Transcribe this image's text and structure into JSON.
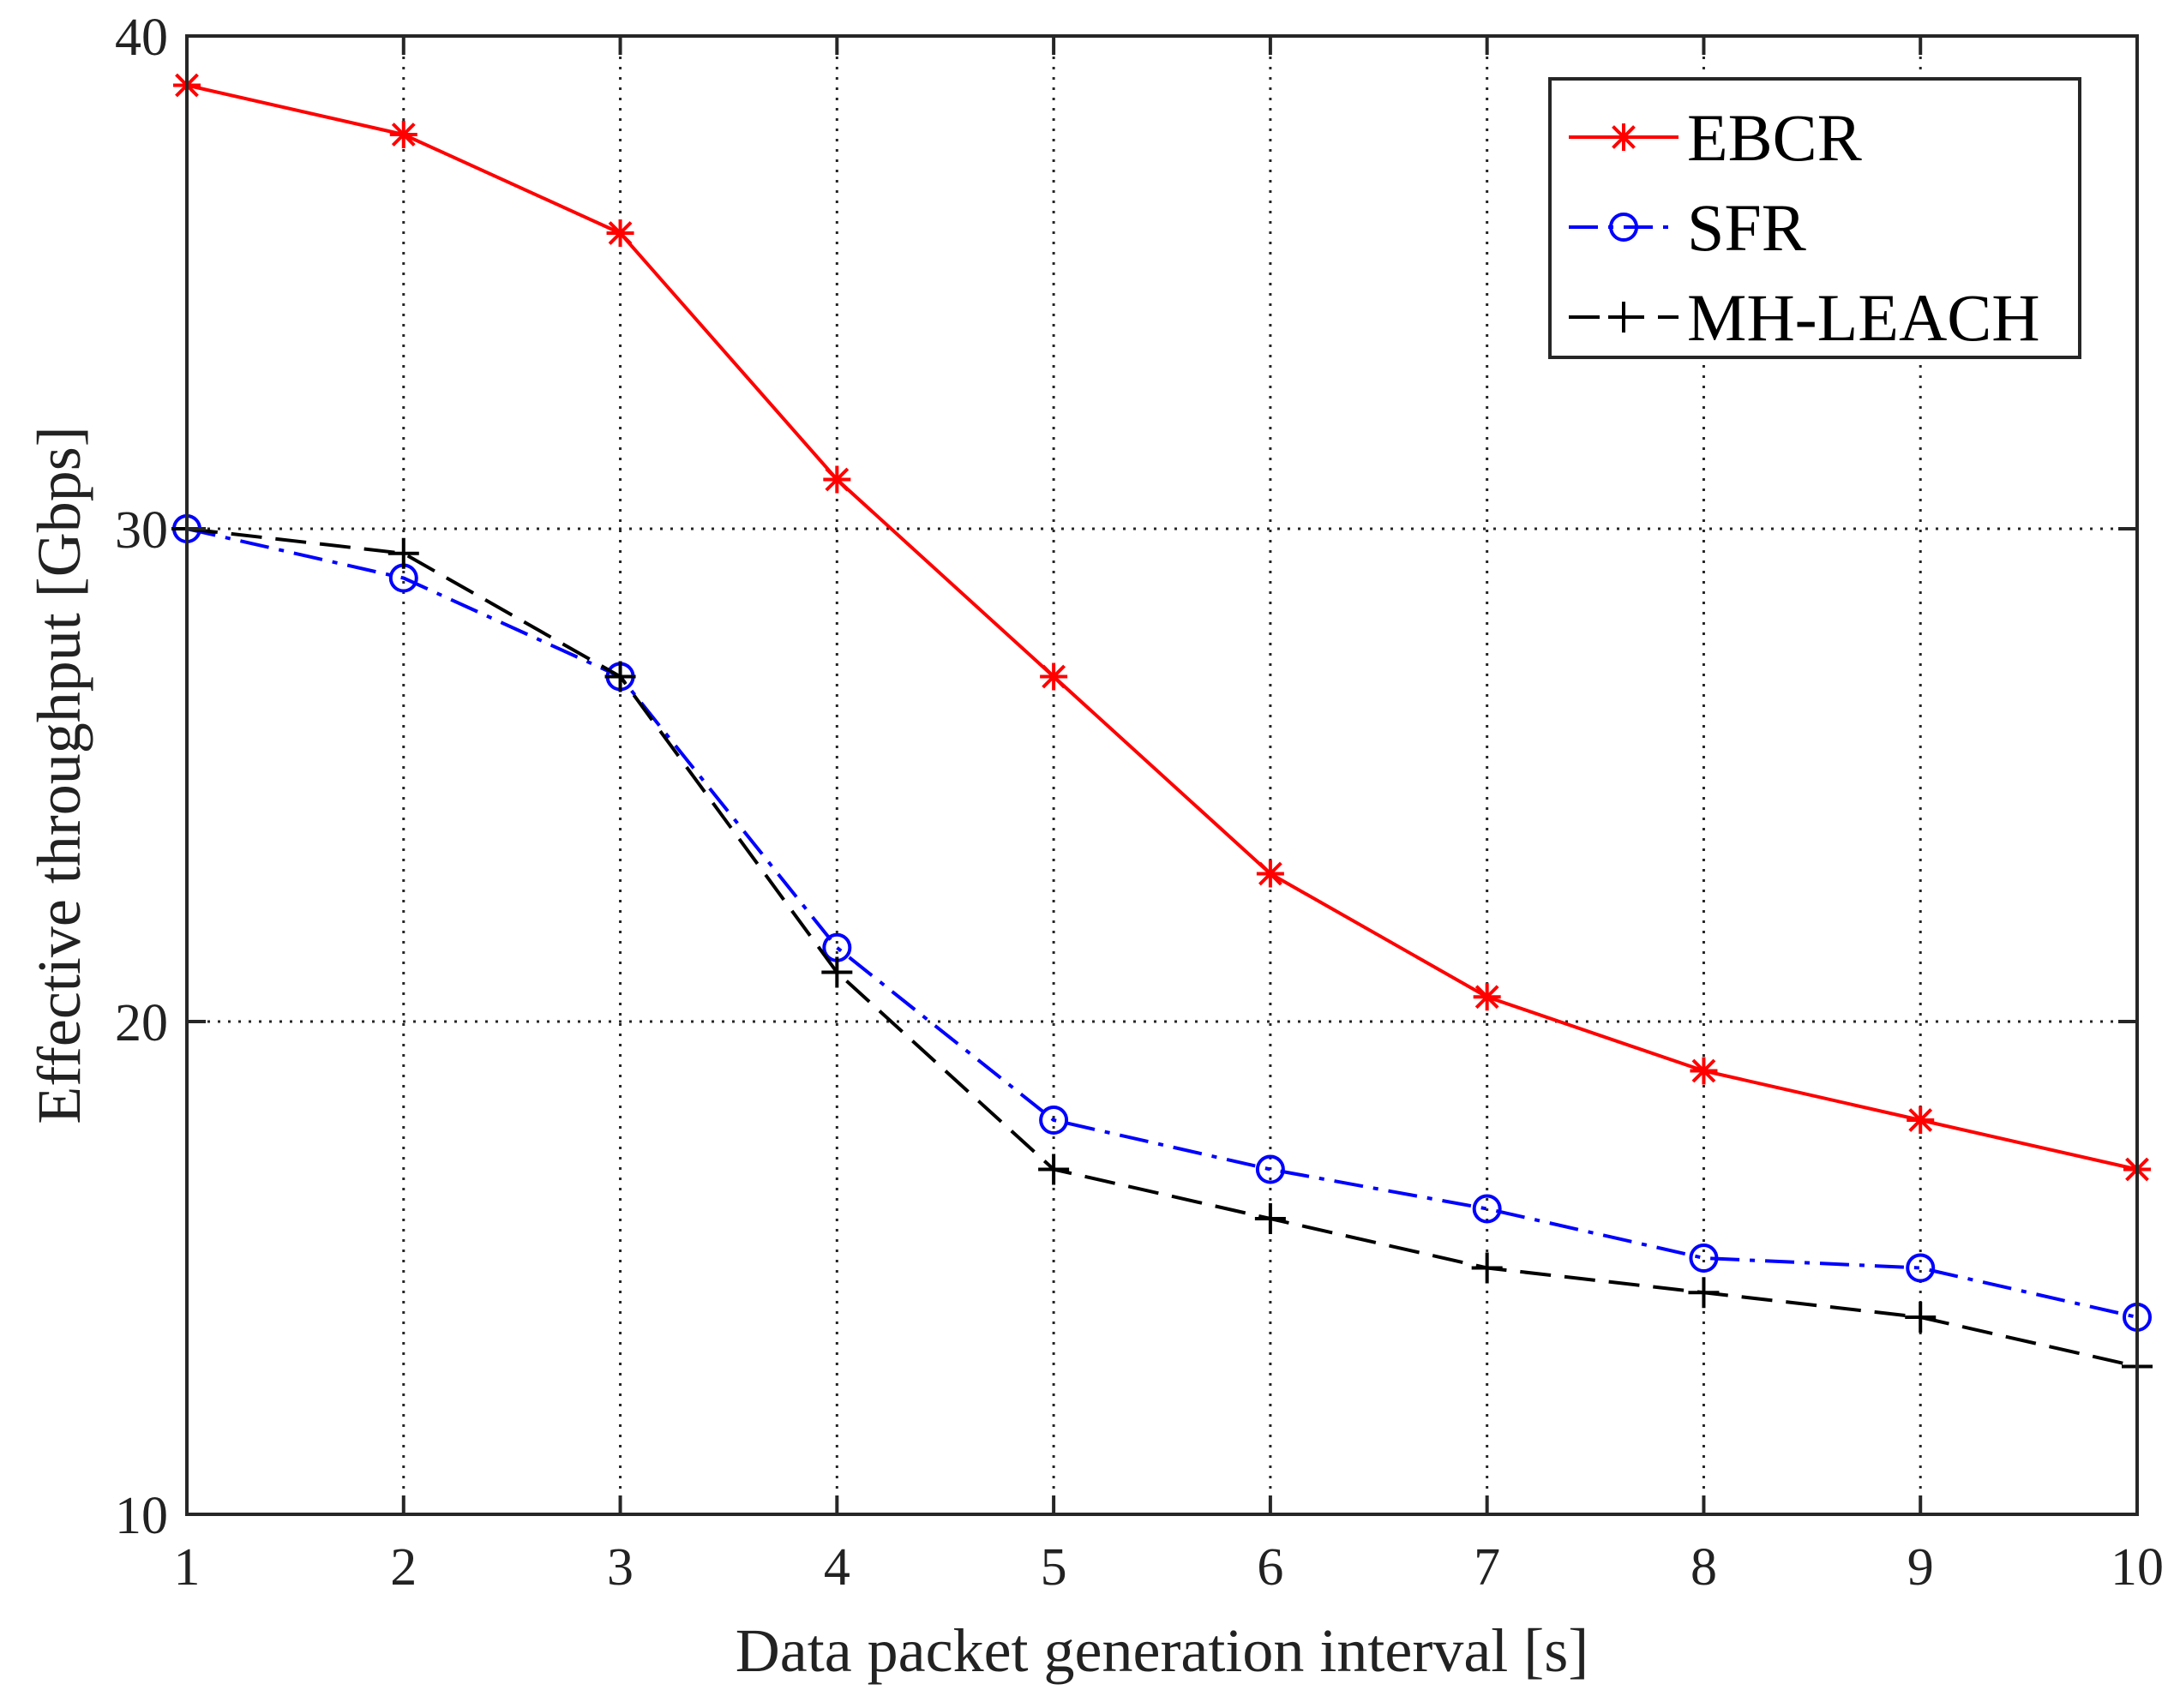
{
  "chart_data": {
    "type": "line",
    "title": "",
    "xlabel": "Data packet generation interval [s]",
    "ylabel": "Effective throughput [Gbps]",
    "x": [
      1,
      2,
      3,
      4,
      5,
      6,
      7,
      8,
      9,
      10
    ],
    "xlim": [
      1,
      10
    ],
    "ylim": [
      10,
      40
    ],
    "xticks": [
      "1",
      "2",
      "3",
      "4",
      "5",
      "6",
      "7",
      "8",
      "9",
      "10"
    ],
    "yticks": [
      "10",
      "20",
      "30",
      "40"
    ],
    "grid": true,
    "legend_position": "top-right",
    "series": [
      {
        "name": "EBCR",
        "color": "#ff0000",
        "line_style": "solid",
        "marker": "asterisk",
        "values": [
          39.0,
          38.0,
          36.0,
          31.0,
          27.0,
          23.0,
          20.5,
          19.0,
          18.0,
          17.0
        ]
      },
      {
        "name": "SFR",
        "color": "#0000ff",
        "line_style": "dash-dot",
        "marker": "circle",
        "values": [
          30.0,
          29.0,
          27.0,
          21.5,
          18.0,
          17.0,
          16.2,
          15.2,
          15.0,
          14.0
        ]
      },
      {
        "name": "MH-LEACH",
        "color": "#000000",
        "line_style": "dashed",
        "marker": "plus",
        "values": [
          30.0,
          29.5,
          27.0,
          21.0,
          17.0,
          16.0,
          15.0,
          14.5,
          14.0,
          13.0
        ]
      }
    ]
  }
}
